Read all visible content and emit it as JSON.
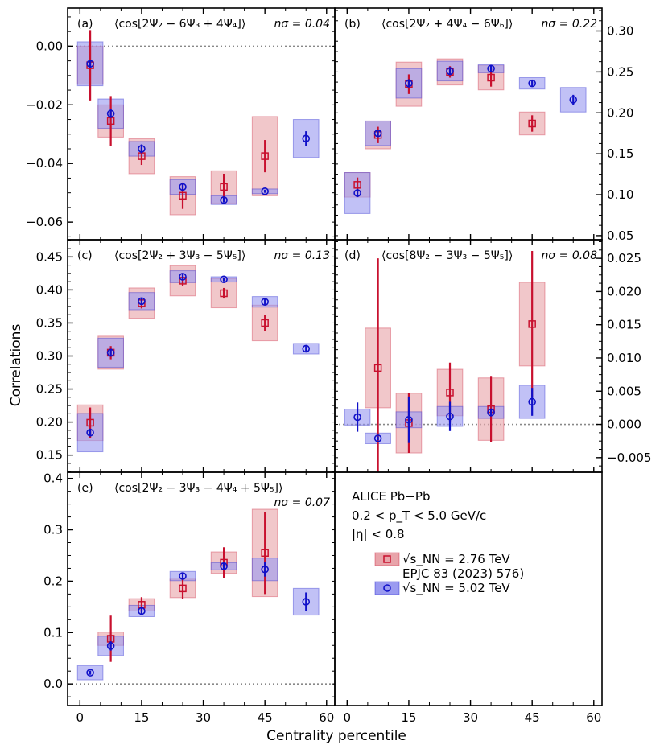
{
  "figure": {
    "ylabel": "Correlations",
    "xlabel": "Centrality percentile",
    "legend": {
      "lines": [
        "ALICE Pb−Pb",
        "0.2 < p_T < 5.0 GeV/c",
        "|η| < 0.8"
      ],
      "entries": [
        {
          "label": "√s_NN = 2.76 TeV",
          "sublabel": "EPJC 83 (2023) 576)"
        },
        {
          "label": "√s_NN = 5.02 TeV",
          "sublabel": ""
        }
      ]
    }
  },
  "colors": {
    "red": "#c8102e",
    "red_box": "#e8a4aa",
    "blue": "#1010c8",
    "blue_box": "#9b9bf0"
  },
  "chart_data": [
    {
      "type": "scatter",
      "panel": "(a)",
      "title": "⟨cos[2Ψ₂ − 6Ψ₃ + 4Ψ₄]⟩",
      "n_sigma": "nσ = 0.04",
      "xlim": [
        -3,
        62
      ],
      "ylim": [
        -0.066,
        0.013
      ],
      "ticks": [
        -0.06,
        -0.04,
        -0.02,
        0.0
      ],
      "tick_labels": [
        "−0.06",
        "−0.04",
        "−0.02",
        "0.00"
      ],
      "tick_side": "left",
      "show_x_labels": false,
      "zero_line": 0,
      "series": [
        {
          "name": "2.76 TeV",
          "x": [
            2.5,
            7.5,
            15,
            25,
            35,
            45
          ],
          "y": [
            -0.0065,
            -0.0255,
            -0.0375,
            -0.051,
            -0.048,
            -0.0375
          ],
          "stat": [
            0.012,
            0.0085,
            0.003,
            0.0045,
            0.0045,
            0.0055
          ],
          "sys": [
            0.0065,
            0.0055,
            0.006,
            0.0065,
            0.0055,
            0.0135
          ]
        },
        {
          "name": "5.02 TeV",
          "x": [
            2.5,
            7.5,
            15,
            25,
            35,
            45,
            55
          ],
          "y": [
            -0.006,
            -0.023,
            -0.035,
            -0.048,
            -0.0525,
            -0.0495,
            -0.0315
          ],
          "stat": [
            0.001,
            0.0015,
            0.0015,
            0.001,
            0.0008,
            0.0005,
            0.0025
          ],
          "sys": [
            0.0075,
            0.005,
            0.0025,
            0.0025,
            0.0015,
            0.0008,
            0.0065
          ]
        }
      ]
    },
    {
      "type": "scatter",
      "panel": "(b)",
      "title": "⟨cos[2Ψ₂ + 4Ψ₄ − 6Ψ₆]⟩",
      "n_sigma": "nσ = 0.22",
      "xlim": [
        -3,
        62
      ],
      "ylim": [
        0.045,
        0.328
      ],
      "ticks": [
        0.05,
        0.1,
        0.15,
        0.2,
        0.25,
        0.3
      ],
      "tick_labels": [
        "0.05",
        "0.10",
        "0.15",
        "0.20",
        "0.25",
        "0.30"
      ],
      "tick_side": "right",
      "show_x_labels": false,
      "zero_line": null,
      "series": [
        {
          "name": "2.76 TeV",
          "x": [
            2.5,
            7.5,
            15,
            25,
            35,
            45
          ],
          "y": [
            0.112,
            0.173,
            0.235,
            0.25,
            0.243,
            0.187
          ],
          "stat": [
            0.009,
            0.01,
            0.012,
            0.007,
            0.011,
            0.01
          ],
          "sys": [
            0.015,
            0.017,
            0.027,
            0.016,
            0.015,
            0.014
          ]
        },
        {
          "name": "5.02 TeV",
          "x": [
            2.5,
            7.5,
            15,
            25,
            35,
            45,
            55
          ],
          "y": [
            0.102,
            0.175,
            0.236,
            0.251,
            0.254,
            0.236,
            0.216
          ],
          "stat": [
            0.005,
            0.004,
            0.005,
            0.005,
            0.004,
            0.004,
            0.006
          ],
          "sys": [
            0.025,
            0.015,
            0.018,
            0.012,
            0.005,
            0.007,
            0.015
          ]
        }
      ]
    },
    {
      "type": "scatter",
      "panel": "(c)",
      "title": "⟨cos[2Ψ₂ + 3Ψ₃ − 5Ψ₅]⟩",
      "n_sigma": "nσ = 0.13",
      "xlim": [
        -3,
        62
      ],
      "ylim": [
        0.124,
        0.476
      ],
      "ticks": [
        0.15,
        0.2,
        0.25,
        0.3,
        0.35,
        0.4,
        0.45
      ],
      "tick_labels": [
        "0.15",
        "0.20",
        "0.25",
        "0.30",
        "0.35",
        "0.40",
        "0.45"
      ],
      "tick_side": "left",
      "show_x_labels": false,
      "zero_line": null,
      "series": [
        {
          "name": "2.76 TeV",
          "x": [
            2.5,
            7.5,
            15,
            25,
            35,
            45
          ],
          "y": [
            0.199,
            0.305,
            0.38,
            0.414,
            0.395,
            0.35
          ],
          "stat": [
            0.023,
            0.01,
            0.008,
            0.008,
            0.008,
            0.012
          ],
          "sys": [
            0.027,
            0.025,
            0.023,
            0.023,
            0.022,
            0.027
          ]
        },
        {
          "name": "5.02 TeV",
          "x": [
            2.5,
            7.5,
            15,
            25,
            35,
            45,
            55
          ],
          "y": [
            0.184,
            0.305,
            0.383,
            0.42,
            0.416,
            0.382,
            0.311
          ],
          "stat": [
            0.006,
            0.006,
            0.005,
            0.004,
            0.003,
            0.004,
            0.004
          ],
          "sys": [
            0.029,
            0.022,
            0.013,
            0.009,
            0.004,
            0.008,
            0.008
          ]
        }
      ]
    },
    {
      "type": "scatter",
      "panel": "(d)",
      "title": "⟨cos[8Ψ₂ − 3Ψ₃ − 5Ψ₅]⟩",
      "n_sigma": "nσ = 0.08",
      "xlim": [
        -3,
        62
      ],
      "ylim": [
        -0.0072,
        0.0278
      ],
      "ticks": [
        -0.005,
        0.0,
        0.005,
        0.01,
        0.015,
        0.02,
        0.025
      ],
      "tick_labels": [
        "−0.005",
        "0.000",
        "0.005",
        "0.010",
        "0.015",
        "0.020",
        "0.025"
      ],
      "tick_side": "right",
      "show_x_labels": false,
      "zero_line": 0,
      "series": [
        {
          "name": "2.76 TeV",
          "x": [
            2.5,
            7.5,
            15,
            25,
            35,
            45
          ],
          "y": [
            null,
            0.0085,
            0.0002,
            0.0048,
            0.0023,
            0.0151
          ],
          "stat": [
            null,
            0.0165,
            0.0045,
            0.0045,
            0.005,
            0.011
          ],
          "sys": [
            null,
            0.006,
            0.0045,
            0.0035,
            0.0047,
            0.0063
          ]
        },
        {
          "name": "5.02 TeV",
          "x": [
            2.5,
            7.5,
            15,
            25,
            35,
            45,
            55
          ],
          "y": [
            0.0011,
            -0.0021,
            0.0007,
            0.0012,
            0.0018,
            0.0034,
            null
          ],
          "stat": [
            0.0022,
            0.0003,
            0.0035,
            0.0022,
            0.0006,
            0.0021,
            null
          ],
          "sys": [
            0.0012,
            0.0008,
            0.0012,
            0.0015,
            0.0009,
            0.0025,
            null
          ]
        }
      ]
    },
    {
      "type": "scatter",
      "panel": "(e)",
      "title": "⟨cos[2Ψ₂ − 3Ψ₃ − 4Ψ₄ + 5Ψ₅]⟩",
      "n_sigma": "nσ = 0.07",
      "xlim": [
        -3,
        62
      ],
      "ylim": [
        -0.042,
        0.412
      ],
      "ticks": [
        0.0,
        0.1,
        0.2,
        0.3,
        0.4
      ],
      "tick_labels": [
        "0.0",
        "0.1",
        "0.2",
        "0.3",
        "0.4"
      ],
      "tick_side": "left",
      "show_x_labels": true,
      "x_ticks": [
        0,
        15,
        30,
        45,
        60
      ],
      "x_tick_labels": [
        "0",
        "15",
        "30",
        "45",
        "60"
      ],
      "zero_line": 0,
      "series": [
        {
          "name": "2.76 TeV",
          "x": [
            7.5,
            15,
            25,
            35,
            45
          ],
          "y": [
            0.088,
            0.154,
            0.186,
            0.236,
            0.255
          ],
          "stat": [
            0.045,
            0.015,
            0.02,
            0.03,
            0.08
          ],
          "sys": [
            0.013,
            0.012,
            0.018,
            0.021,
            0.085
          ]
        },
        {
          "name": "5.02 TeV",
          "x": [
            2.5,
            7.5,
            15,
            25,
            35,
            45,
            55
          ],
          "y": [
            0.022,
            0.074,
            0.142,
            0.21,
            0.229,
            0.223,
            0.16
          ],
          "stat": [
            0.004,
            0.009,
            0.006,
            0.006,
            0.008,
            0.014,
            0.018
          ],
          "sys": [
            0.014,
            0.019,
            0.011,
            0.009,
            0.007,
            0.022,
            0.026
          ]
        }
      ]
    }
  ],
  "right_panel_x_ticks": [
    "0",
    "15",
    "30",
    "45",
    "60"
  ]
}
